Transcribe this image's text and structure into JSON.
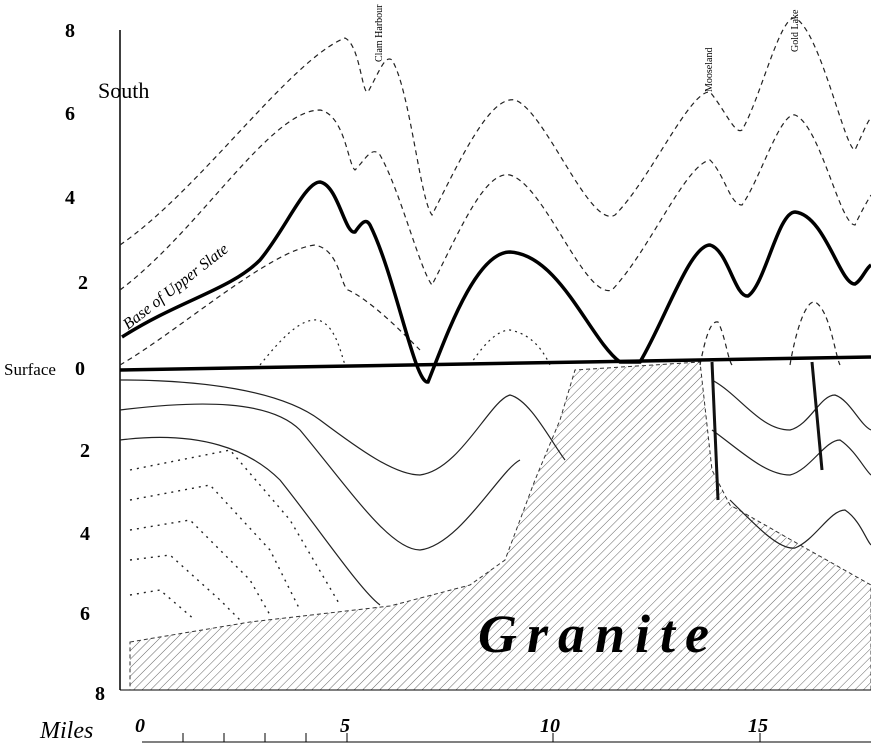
{
  "labels": {
    "south": "South",
    "base": "Base of Upper Slate",
    "surface": "Surface",
    "granite": "Granite",
    "miles": "Miles"
  },
  "places": [
    "Clam Harbour",
    "Mooseland",
    "Gold Lake"
  ],
  "depth_scale": [
    "8",
    "6",
    "4",
    "2",
    "0",
    "2",
    "4",
    "6",
    "8"
  ],
  "distance_scale": [
    "0",
    "5",
    "10",
    "15"
  ]
}
